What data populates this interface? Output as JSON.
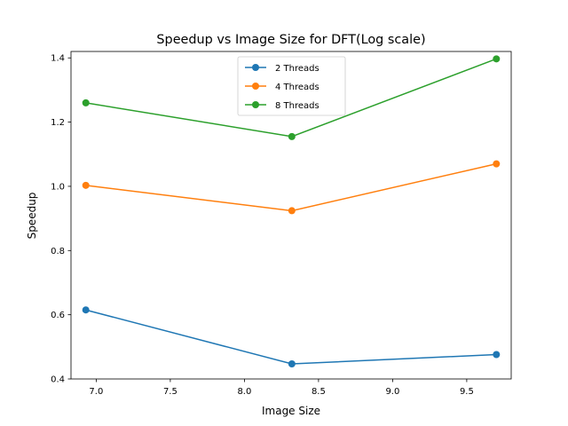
{
  "chart_data": {
    "type": "line",
    "title": "Speedup vs Image Size for DFT(Log scale)",
    "xlabel": "Image Size",
    "ylabel": "Speedup",
    "x": [
      6.93,
      8.32,
      9.7
    ],
    "xlim": [
      6.83,
      9.8
    ],
    "ylim": [
      0.4,
      1.42
    ],
    "xticks": [
      7.0,
      7.5,
      8.0,
      8.5,
      9.0,
      9.5
    ],
    "xtick_labels": [
      "7.0",
      "7.5",
      "8.0",
      "8.5",
      "9.0",
      "9.5"
    ],
    "yticks": [
      0.4,
      0.6,
      0.8,
      1.0,
      1.2,
      1.4
    ],
    "ytick_labels": [
      "0.4",
      "0.6",
      "0.8",
      "1.0",
      "1.2",
      "1.4"
    ],
    "grid": false,
    "legend_position": "top-center",
    "series": [
      {
        "name": "2 Threads",
        "color": "#1f77b4",
        "values": [
          0.615,
          0.447,
          0.476
        ]
      },
      {
        "name": "4 Threads",
        "color": "#ff7f0e",
        "values": [
          1.003,
          0.924,
          1.07
        ]
      },
      {
        "name": "8 Threads",
        "color": "#2ca02c",
        "values": [
          1.26,
          1.155,
          1.397
        ]
      }
    ]
  }
}
